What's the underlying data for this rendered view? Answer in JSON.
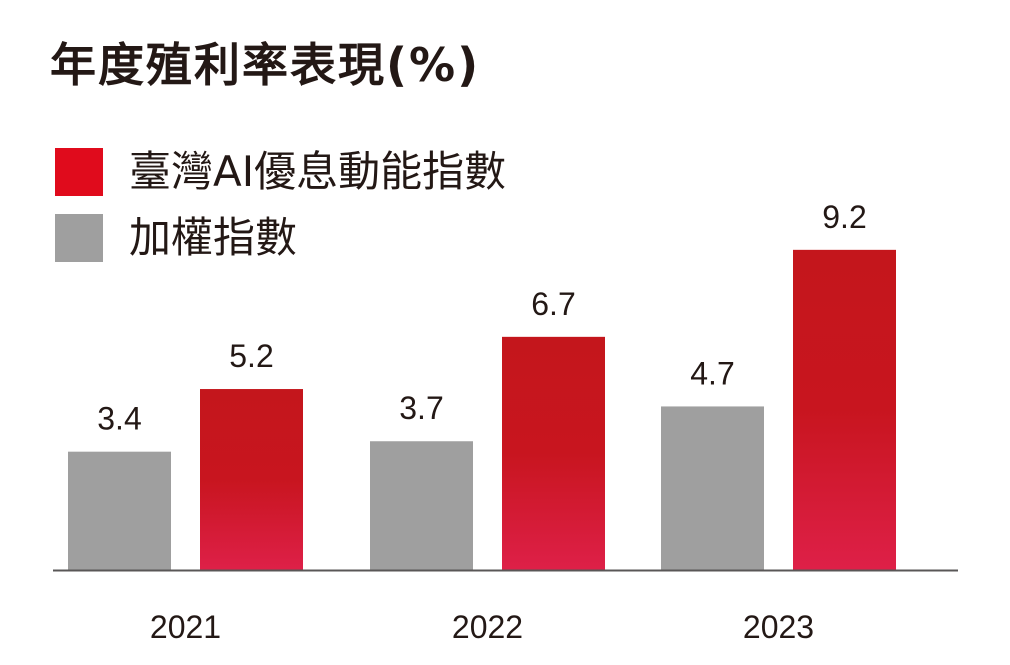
{
  "title": "年度殖利率表現(%)",
  "colors": {
    "red_top": "#c4161c",
    "red_mid": "#c8151f",
    "red_bottom": "#de2048",
    "gray": "#9f9f9f",
    "axis": "#595757",
    "text": "#231815"
  },
  "chart_data": {
    "type": "bar",
    "title": "年度殖利率表現(%)",
    "categories": [
      "2021",
      "2022",
      "2023"
    ],
    "series": [
      {
        "name": "加權指數",
        "values": [
          3.4,
          3.7,
          4.7
        ],
        "color": "#9f9f9f"
      },
      {
        "name": "臺灣AI優息動能指數",
        "values": [
          5.2,
          6.7,
          9.2
        ],
        "color": "#c4161c"
      }
    ],
    "legend": {
      "placement": "top-left",
      "entries": [
        {
          "label": "臺灣AI優息動能指數",
          "color": "#c4161c"
        },
        {
          "label": "加權指數",
          "color": "#9f9f9f"
        }
      ]
    },
    "ylim": [
      0,
      10
    ],
    "xlabel": "",
    "ylabel": "",
    "grid": false,
    "data_labels": true
  }
}
